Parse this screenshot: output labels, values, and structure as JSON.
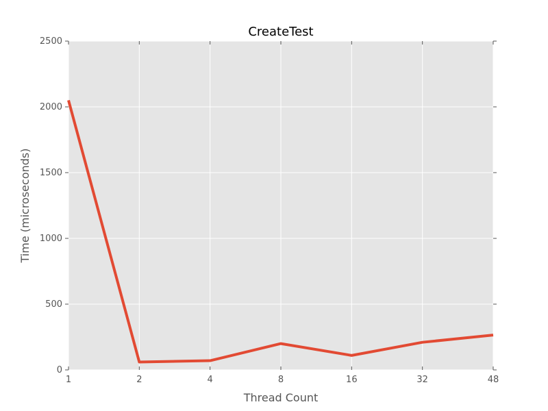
{
  "chart_data": {
    "type": "line",
    "title": "CreateTest",
    "xlabel": "Thread Count",
    "ylabel": "Time (microseconds)",
    "x_categories": [
      "1",
      "2",
      "4",
      "8",
      "16",
      "32",
      "48"
    ],
    "y_ticks": [
      0,
      500,
      1000,
      1500,
      2000,
      2500
    ],
    "ylim": [
      0,
      2500
    ],
    "grid": true,
    "legend": "none",
    "series": [
      {
        "values": [
          2050,
          60,
          70,
          200,
          110,
          210,
          265
        ],
        "color": "#e24a33"
      }
    ],
    "background_color": "#e5e5e5",
    "grid_color": "#ffffff"
  }
}
